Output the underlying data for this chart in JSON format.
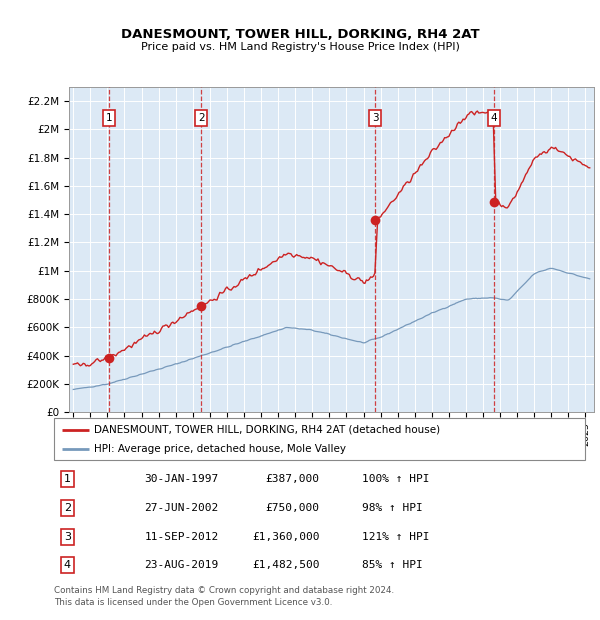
{
  "title": "DANESMOUNT, TOWER HILL, DORKING, RH4 2AT",
  "subtitle": "Price paid vs. HM Land Registry's House Price Index (HPI)",
  "xlim": [
    1994.75,
    2025.5
  ],
  "ylim": [
    0,
    2300000
  ],
  "yticks": [
    0,
    200000,
    400000,
    600000,
    800000,
    1000000,
    1200000,
    1400000,
    1600000,
    1800000,
    2000000,
    2200000
  ],
  "ytick_labels": [
    "£0",
    "£200K",
    "£400K",
    "£600K",
    "£800K",
    "£1M",
    "£1.2M",
    "£1.4M",
    "£1.6M",
    "£1.8M",
    "£2M",
    "£2.2M"
  ],
  "plot_bg_color": "#dce9f5",
  "red_color": "#cc2222",
  "blue_color": "#7799bb",
  "grid_color": "#ffffff",
  "sale_events": [
    {
      "num": 1,
      "year": 1997.08,
      "price": 387000
    },
    {
      "num": 2,
      "year": 2002.49,
      "price": 750000
    },
    {
      "num": 3,
      "year": 2012.69,
      "price": 1360000
    },
    {
      "num": 4,
      "year": 2019.64,
      "price": 1482500
    }
  ],
  "legend_line1": "DANESMOUNT, TOWER HILL, DORKING, RH4 2AT (detached house)",
  "legend_line2": "HPI: Average price, detached house, Mole Valley",
  "footer1": "Contains HM Land Registry data © Crown copyright and database right 2024.",
  "footer2": "This data is licensed under the Open Government Licence v3.0.",
  "table_rows": [
    {
      "num": "1",
      "date": "30-JAN-1997",
      "price": "£387,000",
      "hpi": "100% ↑ HPI"
    },
    {
      "num": "2",
      "date": "27-JUN-2002",
      "price": "£750,000",
      "hpi": "98% ↑ HPI"
    },
    {
      "num": "3",
      "date": "11-SEP-2012",
      "price": "£1,360,000",
      "hpi": "121% ↑ HPI"
    },
    {
      "num": "4",
      "date": "23-AUG-2019",
      "price": "£1,482,500",
      "hpi": "85% ↑ HPI"
    }
  ]
}
